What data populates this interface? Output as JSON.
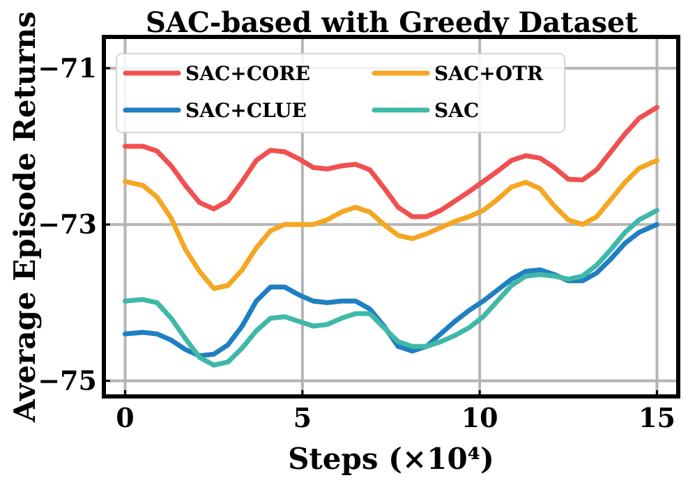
{
  "chart_data": {
    "type": "line",
    "title": "SAC-based with Greedy Dataset",
    "xlabel": "Steps (×10⁴)",
    "ylabel": "Average Episode Returns",
    "xlim": [
      -0.6,
      15.6
    ],
    "ylim": [
      -75.2,
      -70.6
    ],
    "xticks": [
      0,
      5,
      10,
      15
    ],
    "xtick_labels": [
      "0",
      "5",
      "10",
      "15"
    ],
    "yticks": [
      -71,
      -73,
      -75
    ],
    "ytick_labels": [
      "−71",
      "−73",
      "−75"
    ],
    "grid": true,
    "legend_position": "top-left",
    "x": [
      0,
      0.5,
      0.9,
      1.3,
      1.7,
      2.1,
      2.5,
      2.9,
      3.3,
      3.7,
      4.1,
      4.5,
      4.9,
      5.3,
      5.7,
      6.1,
      6.5,
      6.9,
      7.3,
      7.7,
      8.1,
      8.5,
      8.9,
      9.3,
      9.7,
      10.1,
      10.5,
      10.9,
      11.3,
      11.7,
      12.1,
      12.5,
      12.9,
      13.3,
      13.7,
      14.1,
      14.5,
      15
    ],
    "series": [
      {
        "name": "SAC+CORE",
        "color": "#f05050",
        "values": [
          -72.0,
          -72.0,
          -72.06,
          -72.25,
          -72.5,
          -72.72,
          -72.8,
          -72.7,
          -72.45,
          -72.18,
          -72.05,
          -72.07,
          -72.16,
          -72.27,
          -72.29,
          -72.25,
          -72.23,
          -72.3,
          -72.53,
          -72.78,
          -72.9,
          -72.9,
          -72.82,
          -72.7,
          -72.58,
          -72.45,
          -72.32,
          -72.18,
          -72.12,
          -72.15,
          -72.27,
          -72.42,
          -72.43,
          -72.3,
          -72.07,
          -71.84,
          -71.64,
          -71.5
        ]
      },
      {
        "name": "SAC+OTR",
        "color": "#f5a623",
        "values": [
          -72.45,
          -72.5,
          -72.65,
          -72.92,
          -73.32,
          -73.6,
          -73.82,
          -73.78,
          -73.58,
          -73.3,
          -73.08,
          -73.0,
          -73.0,
          -73.0,
          -72.94,
          -72.84,
          -72.78,
          -72.84,
          -73.0,
          -73.14,
          -73.18,
          -73.12,
          -73.04,
          -72.96,
          -72.9,
          -72.82,
          -72.68,
          -72.52,
          -72.46,
          -72.54,
          -72.76,
          -72.94,
          -73.0,
          -72.9,
          -72.68,
          -72.46,
          -72.28,
          -72.18
        ]
      },
      {
        "name": "SAC+CLUE",
        "color": "#1f7fc2",
        "values": [
          -74.4,
          -74.38,
          -74.4,
          -74.48,
          -74.6,
          -74.68,
          -74.66,
          -74.54,
          -74.3,
          -73.98,
          -73.8,
          -73.8,
          -73.9,
          -73.98,
          -74.0,
          -73.98,
          -73.98,
          -74.08,
          -74.3,
          -74.56,
          -74.62,
          -74.56,
          -74.4,
          -74.24,
          -74.1,
          -73.98,
          -73.84,
          -73.7,
          -73.6,
          -73.58,
          -73.64,
          -73.72,
          -73.72,
          -73.62,
          -73.44,
          -73.24,
          -73.1,
          -73.0
        ]
      },
      {
        "name": "SAC",
        "color": "#40b8a8",
        "values": [
          -73.98,
          -73.96,
          -74.0,
          -74.2,
          -74.46,
          -74.7,
          -74.8,
          -74.76,
          -74.58,
          -74.36,
          -74.2,
          -74.18,
          -74.24,
          -74.3,
          -74.28,
          -74.2,
          -74.14,
          -74.14,
          -74.32,
          -74.5,
          -74.56,
          -74.56,
          -74.5,
          -74.42,
          -74.32,
          -74.18,
          -73.98,
          -73.78,
          -73.66,
          -73.64,
          -73.66,
          -73.7,
          -73.66,
          -73.52,
          -73.32,
          -73.1,
          -72.94,
          -72.82
        ]
      }
    ]
  }
}
